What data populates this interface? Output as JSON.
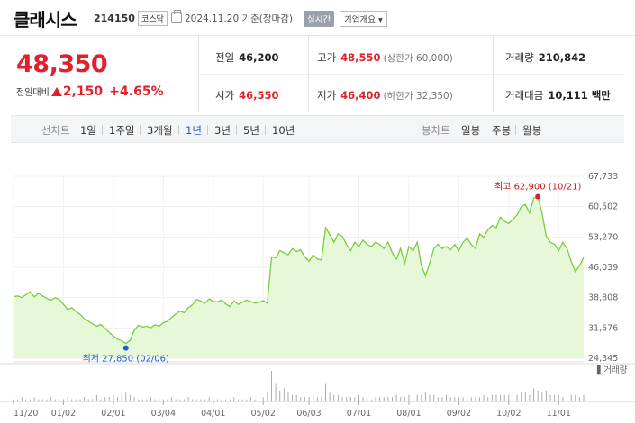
{
  "header": {
    "name": "클래시스",
    "code": "214150",
    "market": "코스닥",
    "as_of": "2024.11.20 기준(장마감)",
    "realtime_label": "실시간",
    "company_label": "기업개요 ▾"
  },
  "price": {
    "current": "48,350",
    "change_label": "전일대비",
    "change": "2,150",
    "change_pct": "+4.65%"
  },
  "stats": {
    "prev_label": "전일",
    "prev": "46,200",
    "high_label": "고가",
    "high": "48,550",
    "upper_limit": "(상한가 60,000)",
    "volume_label": "거래량",
    "volume": "210,842",
    "open_label": "시가",
    "open": "46,550",
    "low_label": "저가",
    "low": "46,400",
    "lower_limit": "(하한가 32,350)",
    "amount_label": "거래대금",
    "amount": "10,111 백만"
  },
  "line_chart": {
    "label": "선차트",
    "options": [
      "1일",
      "1주일",
      "3개월",
      "1년",
      "3년",
      "5년",
      "10년"
    ],
    "active": "1년"
  },
  "candle_chart": {
    "label": "봉차트",
    "options": [
      "일봉",
      "주봉",
      "월봉"
    ]
  },
  "colors": {
    "up": "#e0212b",
    "active": "#1a5fd1",
    "area_fill": "#e6f8d8",
    "line": "#7acc3c"
  },
  "chart_data": {
    "type": "area",
    "x_ticks": [
      "11/20",
      "01/02",
      "02/01",
      "03/04",
      "04/01",
      "05/02",
      "06/03",
      "07/01",
      "08/01",
      "09/02",
      "10/02",
      "11/01"
    ],
    "y_ticks": [
      "67,733",
      "60,502",
      "53,270",
      "46,039",
      "38,808",
      "31,576",
      "24,345"
    ],
    "ylim": [
      24345,
      67733
    ],
    "high_label": "최고 62,900 (10/21)",
    "low_label": "최저 27,850 (02/06)",
    "volume_label": "▌거래량",
    "grid": true,
    "values": [
      39000,
      39200,
      38800,
      39500,
      40200,
      39000,
      39800,
      39200,
      38600,
      38200,
      38800,
      38400,
      37200,
      36000,
      36400,
      35500,
      34800,
      33800,
      33200,
      32500,
      32000,
      32400,
      31500,
      30500,
      29600,
      28900,
      28500,
      27850,
      28600,
      31000,
      32200,
      31800,
      32000,
      31600,
      32300,
      32000,
      32800,
      33200,
      34100,
      34900,
      35600,
      35200,
      36400,
      37100,
      38400,
      38000,
      37500,
      38500,
      37900,
      37800,
      38300,
      37300,
      36700,
      38000,
      37200,
      37700,
      38200,
      37900,
      37500,
      37700,
      38100,
      37500,
      48500,
      48300,
      50000,
      49500,
      49000,
      50500,
      49800,
      50200,
      48500,
      47500,
      49000,
      48000,
      47800,
      55500,
      53800,
      52000,
      54000,
      53500,
      51500,
      50000,
      52000,
      51000,
      52500,
      51500,
      51000,
      52000,
      51500,
      50500,
      52000,
      49500,
      48000,
      50500,
      47000,
      51000,
      50000,
      52000,
      46500,
      44000,
      47000,
      50500,
      51500,
      50500,
      51000,
      50200,
      51500,
      50000,
      52000,
      53000,
      51500,
      50500,
      54000,
      53200,
      55000,
      56000,
      55500,
      58000,
      57000,
      56500,
      57500,
      58500,
      60500,
      61000,
      59000,
      62500,
      62900,
      59000,
      53500,
      52000,
      51500,
      50000,
      52000,
      50500,
      47500,
      45000,
      46500,
      48350
    ],
    "high_index": 126,
    "low_index": 27,
    "volume": [
      1,
      1,
      2,
      1,
      1,
      2,
      1,
      1,
      1,
      2,
      1,
      1,
      1,
      2,
      1,
      1,
      1,
      2,
      1,
      1,
      3,
      1,
      2,
      2,
      3,
      2,
      3,
      4,
      3,
      2,
      1,
      1,
      1,
      2,
      1,
      1,
      1,
      1,
      2,
      1,
      1,
      1,
      2,
      1,
      1,
      1,
      1,
      2,
      1,
      1,
      1,
      1,
      1,
      2,
      1,
      1,
      1,
      2,
      1,
      1,
      2,
      4,
      14,
      8,
      5,
      6,
      4,
      3,
      3,
      2,
      2,
      2,
      3,
      2,
      2,
      8,
      4,
      3,
      3,
      2,
      2,
      2,
      2,
      3,
      2,
      2,
      1,
      2,
      2,
      2,
      2,
      2,
      3,
      2,
      2,
      3,
      2,
      3,
      3,
      4,
      3,
      3,
      2,
      2,
      3,
      2,
      2,
      2,
      2,
      3,
      2,
      2,
      2,
      3,
      2,
      3,
      3,
      3,
      3,
      3,
      3,
      3,
      4,
      4,
      3,
      6,
      5,
      4,
      5,
      3,
      3,
      3,
      2,
      2,
      3,
      3,
      2,
      3
    ]
  }
}
